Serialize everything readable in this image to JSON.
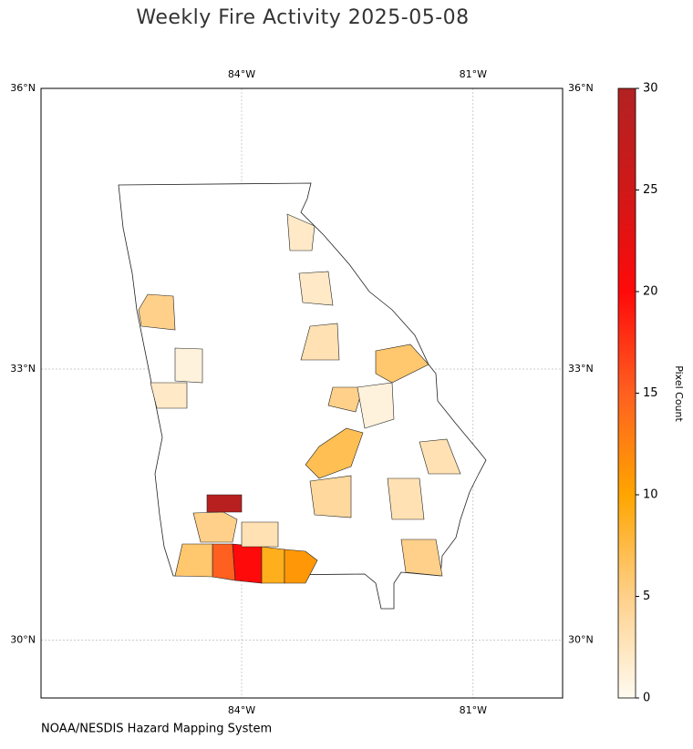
{
  "chart_data": {
    "type": "choropleth",
    "title": "Weekly Fire Activity 2025-05-08",
    "source": "NOAA/NESDIS Hazard Mapping System",
    "xlim": [
      -86.6,
      -79.84
    ],
    "ylim": [
      29.35,
      36
    ],
    "xticks": [
      {
        "value": -84,
        "label": "84°W"
      },
      {
        "value": -81,
        "label": "81°W"
      }
    ],
    "yticks": [
      {
        "value": 30,
        "label": "30°N"
      },
      {
        "value": 33,
        "label": "33°N"
      },
      {
        "value": 36,
        "label": "36°N"
      }
    ],
    "grid": true,
    "colorbar": {
      "label": "Pixel Count",
      "clim": [
        0,
        30
      ],
      "ticks": [
        0,
        5,
        10,
        15,
        20,
        25,
        30
      ],
      "colormap": [
        "#fffaf0",
        "#ffd08a",
        "#ffa500",
        "#ff6020",
        "#ff0a0a",
        "#d01818",
        "#b22222"
      ]
    },
    "values": [
      29,
      15,
      20,
      9,
      11,
      6,
      7,
      6,
      5,
      5,
      5,
      3,
      4,
      3,
      3,
      5,
      2,
      1,
      2,
      1,
      3,
      2
    ]
  }
}
